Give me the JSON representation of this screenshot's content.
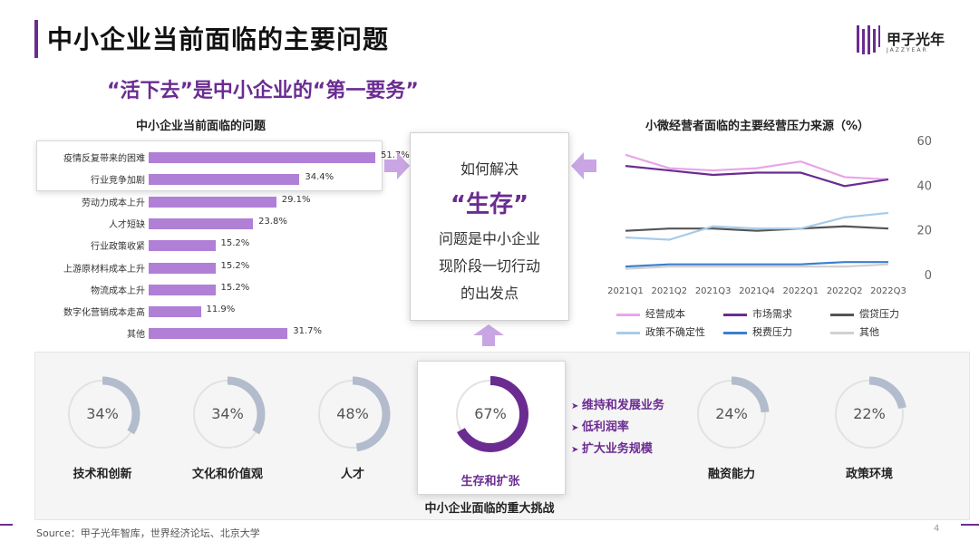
{
  "header": {
    "title": "中小企业当前面临的主要问题",
    "subtitle": "“活下去”是中小企业的“第一要务”",
    "logo_cn": "甲子光年",
    "logo_en": "JAZZYEAR",
    "accent_color": "#6a2c91"
  },
  "left_chart": {
    "title": "中小企业当前面临的问题",
    "bar_color": "#b07fd6",
    "items": [
      {
        "label": "疫情反复带来的困难",
        "value": 51.7,
        "value_text": "51.7%"
      },
      {
        "label": "行业竞争加剧",
        "value": 34.4,
        "value_text": "34.4%"
      },
      {
        "label": "劳动力成本上升",
        "value": 29.1,
        "value_text": "29.1%"
      },
      {
        "label": "人才短缺",
        "value": 23.8,
        "value_text": "23.8%"
      },
      {
        "label": "行业政策收紧",
        "value": 15.2,
        "value_text": "15.2%"
      },
      {
        "label": "上游原材料成本上升",
        "value": 15.2,
        "value_text": "15.2%"
      },
      {
        "label": "物流成本上升",
        "value": 15.2,
        "value_text": "15.2%"
      },
      {
        "label": "数字化营销成本走高",
        "value": 11.9,
        "value_text": "11.9%"
      },
      {
        "label": "其他",
        "value": 31.7,
        "value_text": "31.7%"
      }
    ]
  },
  "center": {
    "line1": "如何解决",
    "line2": "“生存”",
    "line3": "问题是中小企业",
    "line4": "现阶段一切行动",
    "line5": "的出发点"
  },
  "chart_data": {
    "type": "line",
    "title": "小微经营者面临的主要经营压力来源（%）",
    "categories": [
      "2021Q1",
      "2021Q2",
      "2021Q3",
      "2021Q4",
      "2022Q1",
      "2022Q2",
      "2022Q3"
    ],
    "ylim": [
      0,
      60
    ],
    "yticks": [
      0,
      20,
      40,
      60
    ],
    "y_tick_labels": [
      "0",
      "20",
      "40",
      "60"
    ],
    "series": [
      {
        "name": "经营成本",
        "color": "#e8a6e6",
        "values": [
          54,
          48,
          47,
          48,
          51,
          44,
          43
        ]
      },
      {
        "name": "市场需求",
        "color": "#6a2c91",
        "values": [
          49,
          47,
          45,
          46,
          46,
          40,
          43
        ]
      },
      {
        "name": "偿贷压力",
        "color": "#555555",
        "values": [
          20,
          21,
          21,
          20,
          21,
          22,
          21
        ]
      },
      {
        "name": "政策不确定性",
        "color": "#a8cbe8",
        "values": [
          17,
          16,
          22,
          21,
          21,
          26,
          28
        ]
      },
      {
        "name": "税费压力",
        "color": "#3a7fd0",
        "values": [
          4,
          5,
          5,
          5,
          5,
          6,
          6
        ]
      },
      {
        "name": "其他",
        "color": "#d0d0d0",
        "values": [
          3,
          4,
          4,
          4,
          4,
          4,
          5
        ]
      }
    ]
  },
  "donuts": [
    {
      "pct": 34,
      "pct_text": "34%",
      "label": "技术和创新"
    },
    {
      "pct": 34,
      "pct_text": "34%",
      "label": "文化和价值观"
    },
    {
      "pct": 48,
      "pct_text": "48%",
      "label": "人才"
    },
    {
      "pct": 67,
      "pct_text": "67%",
      "label": "生存和扩张"
    },
    {
      "pct": 24,
      "pct_text": "24%",
      "label": "融资能力"
    },
    {
      "pct": 22,
      "pct_text": "22%",
      "label": "政策环境"
    }
  ],
  "challenges": [
    "维持和发展业务",
    "低利润率",
    "扩大业务规模"
  ],
  "bottom_caption": "中小企业面临的重大挑战",
  "source": "Source：甲子光年智库，世界经济论坛、北京大学",
  "page_number": "4",
  "donut_colors": {
    "track": "#e2e2e2",
    "normal": "#b3bccc",
    "focus": "#6a2c91"
  }
}
